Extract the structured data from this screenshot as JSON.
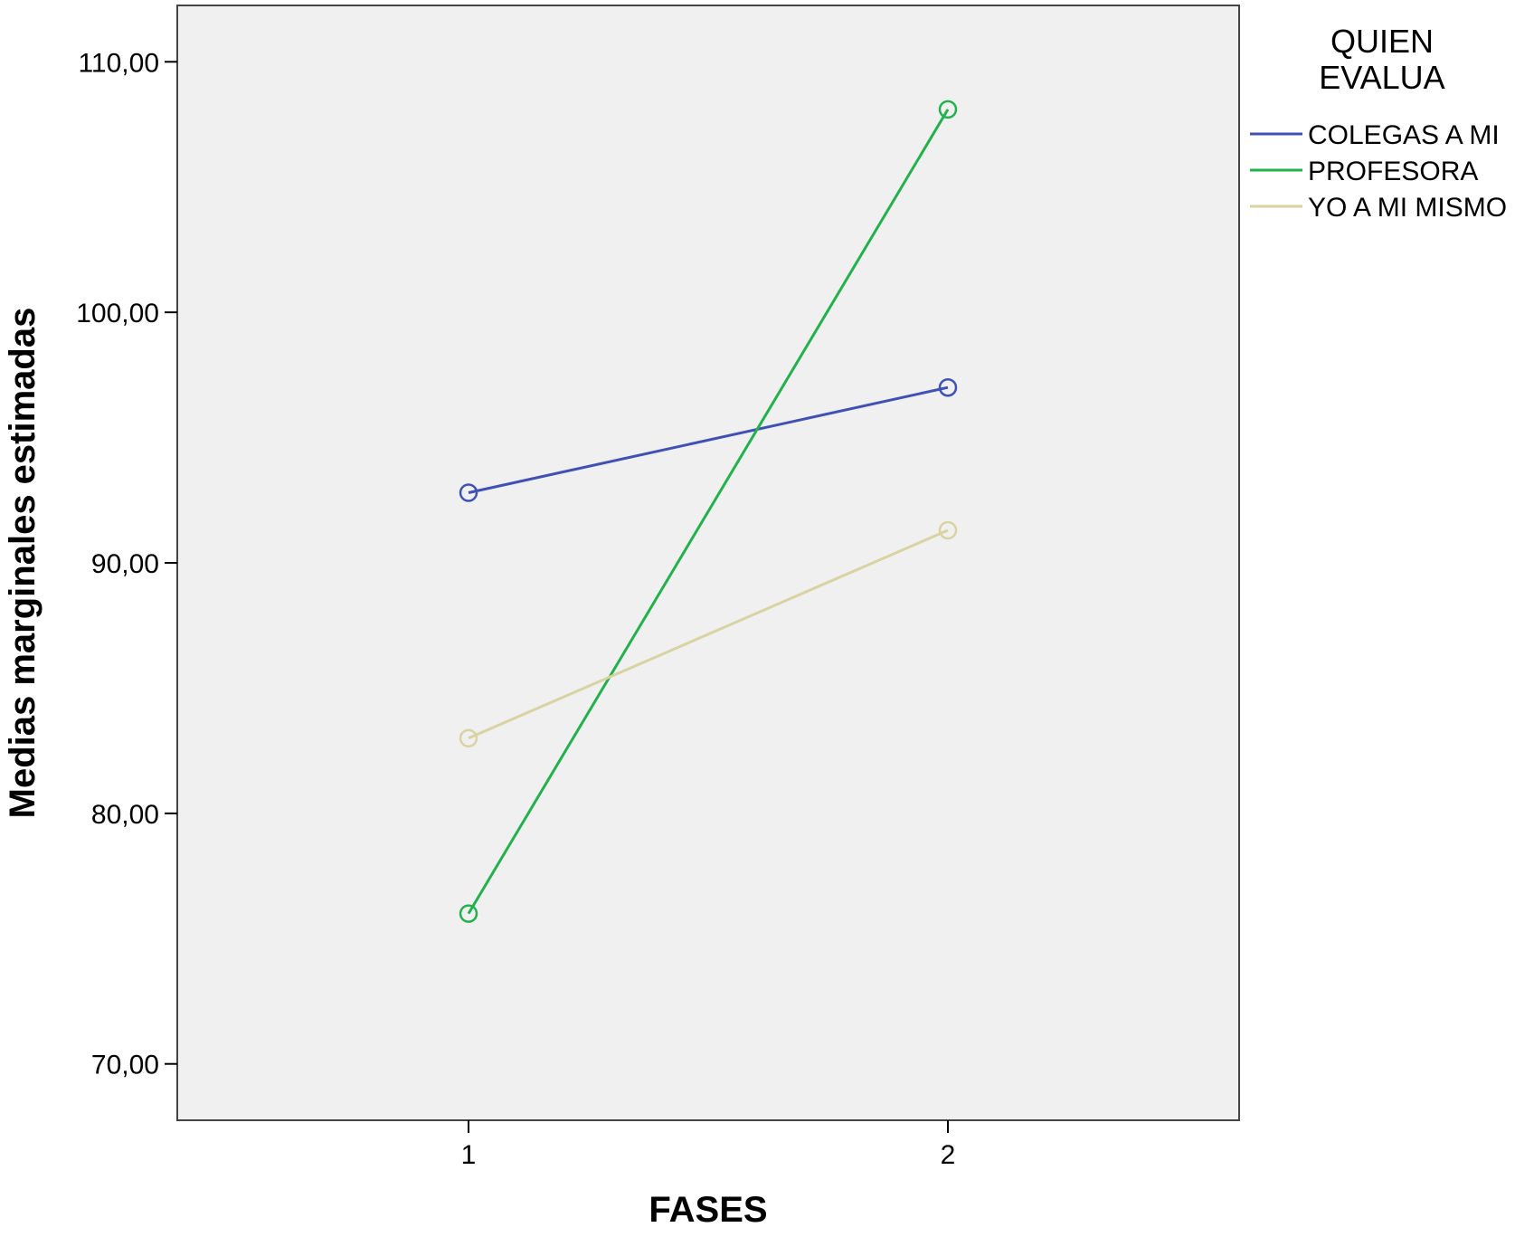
{
  "chart_data": {
    "type": "line",
    "title": "",
    "xlabel": "FASES",
    "ylabel": "Medias marginales estimadas",
    "categories": [
      "1",
      "2"
    ],
    "ylim": [
      67.75,
      112.25
    ],
    "yticks": [
      70,
      80,
      90,
      100,
      110
    ],
    "ytick_labels": [
      "70,00",
      "80,00",
      "90,00",
      "100,00",
      "110,00"
    ],
    "grid": false,
    "legend": {
      "title_lines": [
        "QUIEN",
        "EVALUA"
      ],
      "position": "right"
    },
    "series": [
      {
        "name": "COLEGAS A MI",
        "values": [
          92.8,
          97.0
        ],
        "color": "#3f51b5",
        "marker": "open-circle"
      },
      {
        "name": "PROFESORA",
        "values": [
          76.0,
          108.1
        ],
        "color": "#22b14c",
        "marker": "open-circle"
      },
      {
        "name": "YO A MI MISMO",
        "values": [
          83.0,
          91.3
        ],
        "color": "#d8d3a1",
        "marker": "open-circle"
      }
    ],
    "plot_background": "#f0f0f0"
  }
}
